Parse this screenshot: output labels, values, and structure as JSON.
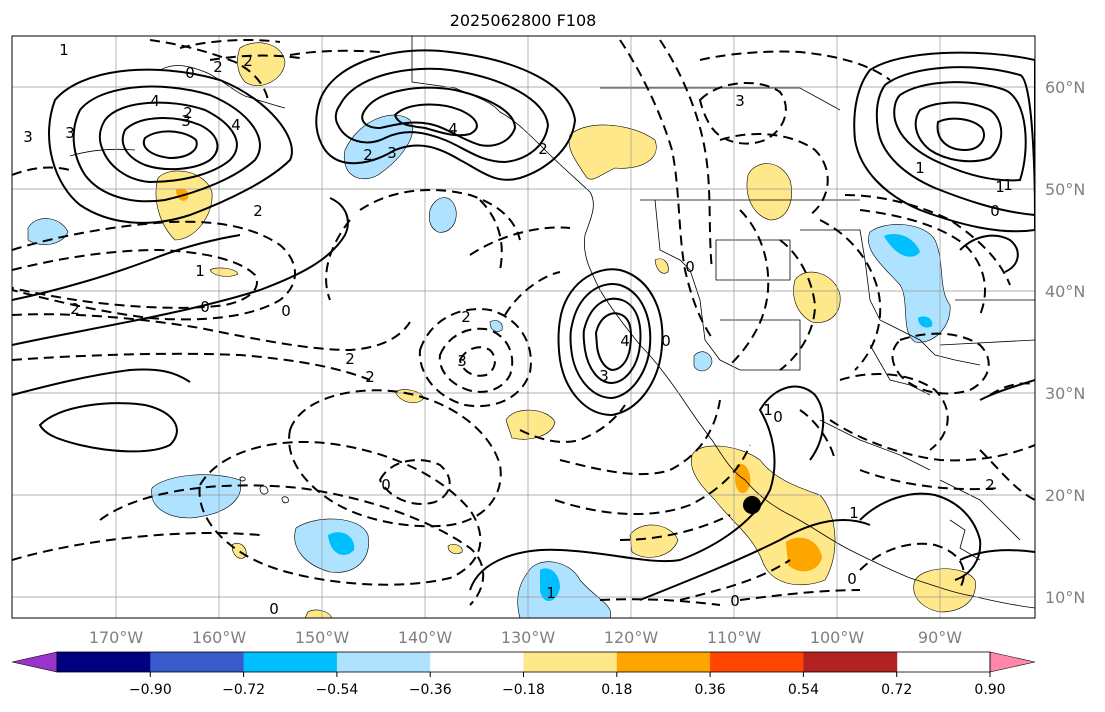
{
  "title": "2025062800 F108",
  "map": {
    "lon_labels": [
      "170°W",
      "160°W",
      "150°W",
      "140°W",
      "130°W",
      "120°W",
      "110°W",
      "100°W",
      "90°W"
    ],
    "lat_labels": [
      "60°N",
      "50°N",
      "40°N",
      "30°N",
      "20°N",
      "10°N"
    ],
    "marker": "black-dot-marker",
    "contour_labels": [
      "1",
      "0",
      "2",
      "2",
      "3",
      "4",
      "2",
      "3",
      "4",
      "3",
      "2",
      "1",
      "2",
      "0",
      "0",
      "2",
      "2",
      "0",
      "0",
      "3",
      "1",
      "3",
      "4",
      "2",
      "0",
      "2",
      "3",
      "4",
      "3",
      "2",
      "0",
      "1",
      "1",
      "0",
      "0",
      "1",
      "1",
      "0",
      "2",
      "1",
      "0"
    ]
  },
  "colorbar": {
    "ticks": [
      "−0.90",
      "−0.72",
      "−0.54",
      "−0.36",
      "−0.18",
      "0.18",
      "0.36",
      "0.54",
      "0.72",
      "0.90"
    ],
    "colors": [
      "#9933cc",
      "#000080",
      "#3a5bcc",
      "#00bfff",
      "#aee2ff",
      "#ffffff",
      "#ffe88a",
      "#ffa500",
      "#ff4500",
      "#b22222",
      "#ff88aa"
    ]
  }
}
